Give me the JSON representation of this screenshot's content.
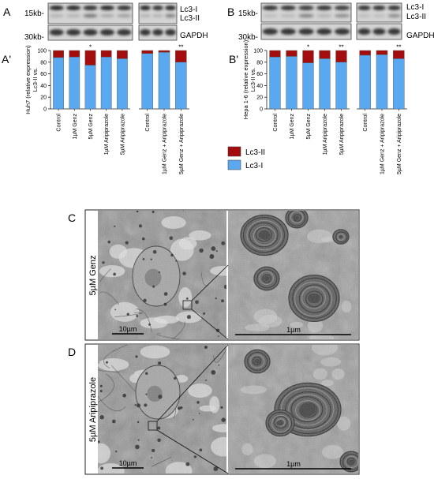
{
  "panels": {
    "A": {
      "letter": "A",
      "kb_top": "15kb-",
      "kb_bottom": "30kb-",
      "band1": "Lc3-I",
      "band2": "Lc3-II",
      "loading": "GAPDH"
    },
    "B": {
      "letter": "B",
      "kb_top": "15kb-",
      "kb_bottom": "30kb-",
      "band1": "Lc3-I",
      "band2": "Lc3-II",
      "loading": "GAPDH"
    },
    "C": {
      "letter": "C",
      "treatment": "5µM Genz",
      "scale_low": "10µm",
      "scale_high": "1µm"
    },
    "D": {
      "letter": "D",
      "treatment": "5µM Aripiprazole",
      "scale_low": "10µm",
      "scale_high": "1µm"
    }
  },
  "legend": {
    "lc3ii": "Lc3-II",
    "lc3i": "Lc3-I"
  },
  "colors": {
    "lc3ii": "#a40d0d",
    "lc3i": "#5aa9f0"
  },
  "chart_data": [
    {
      "type": "bar",
      "stacked": true,
      "panel": "A'",
      "ylabel": "Huh7 (relative expression) Lc3-II vs. Lc3-I",
      "ylim": [
        0,
        100
      ],
      "yticks": [
        0,
        20,
        40,
        60,
        80,
        100
      ],
      "groups": [
        {
          "categories": [
            "Control",
            "1µM Genz",
            "5µM Genz",
            "1µM Aripiprazole",
            "5µM Aripiprazole"
          ],
          "lc3i": [
            88,
            89,
            75,
            89,
            86
          ],
          "lc3ii": [
            12,
            11,
            25,
            11,
            14
          ],
          "stars": [
            "",
            "",
            "*",
            "",
            ""
          ]
        },
        {
          "categories": [
            "Control",
            "1µM Genz + Aripiprazole",
            "5µM Genz + Aripiprazole"
          ],
          "lc3i": [
            95,
            97,
            80
          ],
          "lc3ii": [
            5,
            3,
            20
          ],
          "stars": [
            "",
            "",
            "**"
          ]
        }
      ],
      "series": [
        {
          "name": "Lc3-II"
        },
        {
          "name": "Lc3-I"
        }
      ]
    },
    {
      "type": "bar",
      "stacked": true,
      "panel": "B'",
      "ylabel": "Hepa 1-6 (relative expression) Lc3-II vs. Lc3-I",
      "ylim": [
        0,
        100
      ],
      "yticks": [
        0,
        20,
        40,
        60,
        80,
        100
      ],
      "groups": [
        {
          "categories": [
            "Control",
            "1µM Genz",
            "5µM Genz",
            "1µM Aripiprazole",
            "5µM Aripiprazole"
          ],
          "lc3i": [
            89,
            90,
            79,
            86,
            80
          ],
          "lc3ii": [
            11,
            10,
            21,
            14,
            20
          ],
          "stars": [
            "",
            "",
            "*",
            "",
            "**"
          ]
        },
        {
          "categories": [
            "Control",
            "1µM Genz + Aripiprazole",
            "5µM Genz + Aripiprazole"
          ],
          "lc3i": [
            92,
            93,
            86
          ],
          "lc3ii": [
            8,
            7,
            14
          ],
          "stars": [
            "",
            "",
            "**"
          ]
        }
      ],
      "series": [
        {
          "name": "Lc3-II"
        },
        {
          "name": "Lc3-I"
        }
      ]
    }
  ]
}
